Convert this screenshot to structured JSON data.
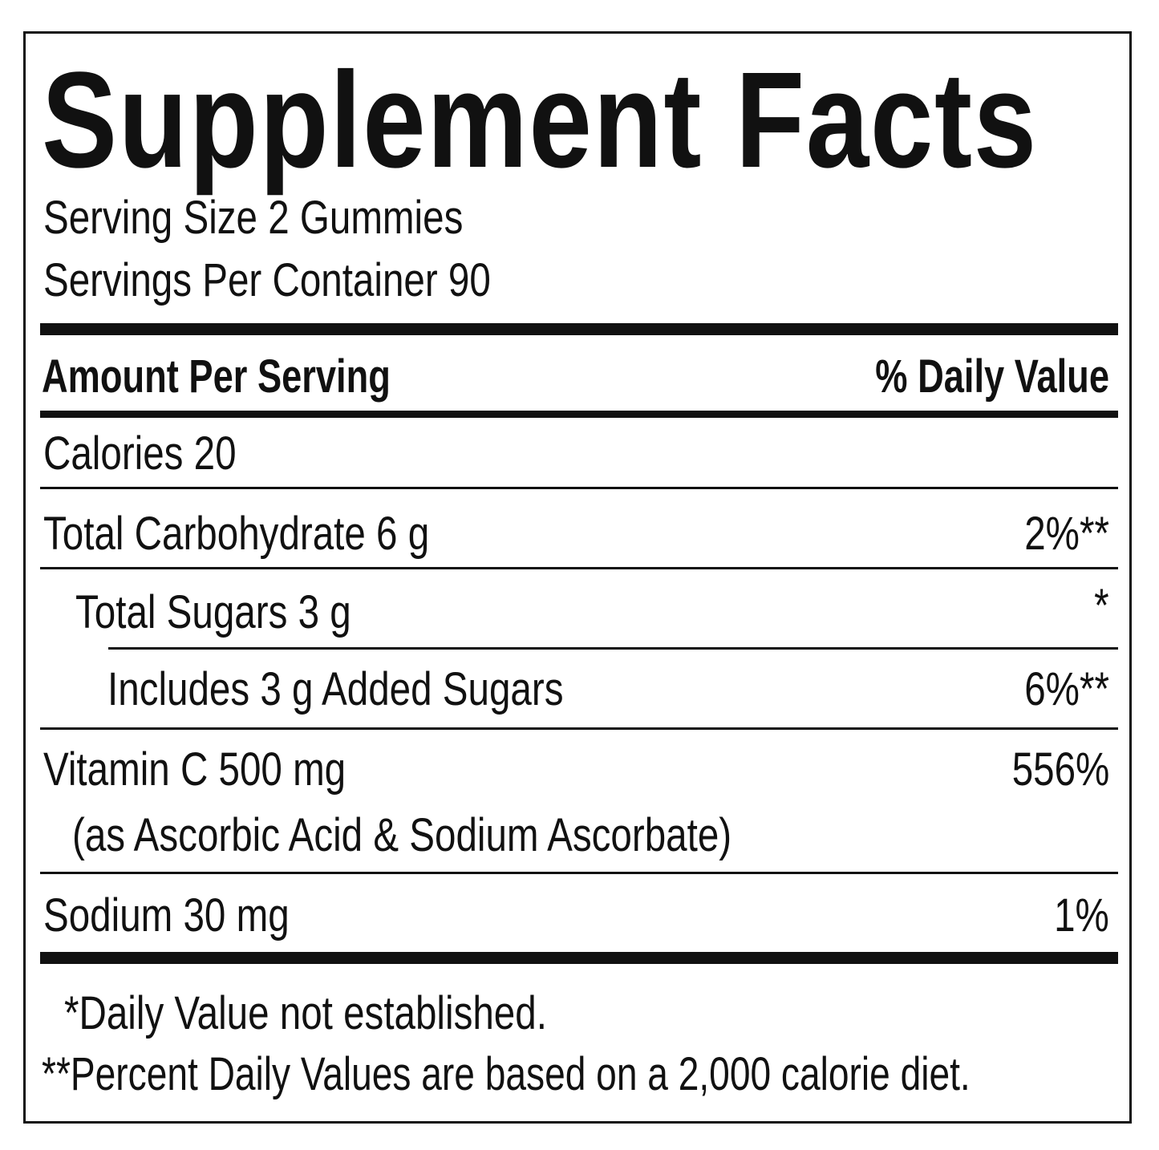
{
  "title": "Supplement Facts",
  "serving_size": "Serving Size 2 Gummies",
  "servings_per_container": "Servings Per Container 90",
  "header": {
    "amount": "Amount Per Serving",
    "daily_value": "% Daily Value"
  },
  "rows": [
    {
      "label": "Calories  20",
      "dv": ""
    },
    {
      "label": "Total Carbohydrate  6 g",
      "dv": "2%**"
    },
    {
      "label": "Total Sugars  3 g",
      "dv": "*"
    },
    {
      "label": "Includes 3 g Added Sugars",
      "dv": "6%**"
    },
    {
      "label": "Vitamin C  500 mg",
      "sub": "(as Ascorbic Acid & Sodium Ascorbate)",
      "dv": "556%"
    },
    {
      "label": "Sodium  30 mg",
      "dv": "1%"
    }
  ],
  "footnotes": [
    "*Daily Value not established.",
    "**Percent Daily Values are based on a 2,000 calorie diet."
  ]
}
